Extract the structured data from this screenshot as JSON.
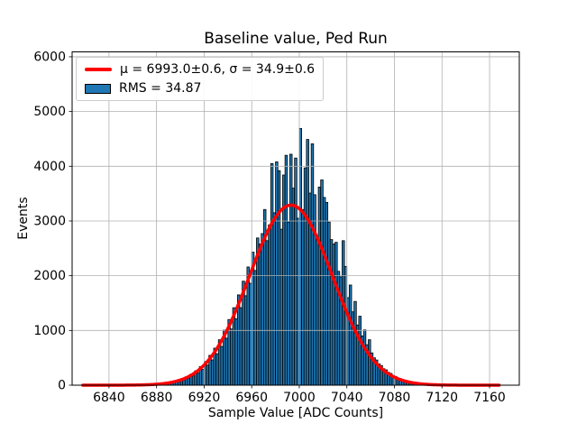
{
  "chart_data": {
    "type": "histogram",
    "title": "Baseline value, Ped Run",
    "xlabel": "Sample Value [ADC Counts]",
    "ylabel": "Events",
    "xlim": [
      6809,
      7185
    ],
    "ylim": [
      0,
      6090
    ],
    "xticks": [
      6840,
      6880,
      6920,
      6960,
      7000,
      7040,
      7080,
      7120,
      7160
    ],
    "yticks": [
      0,
      1000,
      2000,
      3000,
      4000,
      5000,
      6000
    ],
    "grid": true,
    "legend": {
      "position": "upper left",
      "items": [
        {
          "type": "line",
          "color": "#ff0000",
          "label": "μ = 6993.0±0.6, σ = 34.9±0.6"
        },
        {
          "type": "patch",
          "color": "#1f77b4",
          "label": "RMS = 34.87"
        }
      ]
    },
    "histogram": {
      "bin_start": 6826,
      "bin_width": 2,
      "counts": [
        0,
        0,
        1,
        0,
        0,
        1,
        0,
        1,
        0,
        2,
        1,
        2,
        1,
        3,
        2,
        4,
        3,
        5,
        4,
        7,
        5,
        9,
        8,
        13,
        10,
        16,
        13,
        23,
        19,
        32,
        26,
        45,
        38,
        62,
        52,
        85,
        70,
        115,
        96,
        152,
        128,
        200,
        168,
        262,
        222,
        340,
        288,
        432,
        368,
        545,
        462,
        676,
        575,
        830,
        708,
        1005,
        858,
        1200,
        1026,
        1415,
        1212,
        1650,
        1416,
        1900,
        1634,
        2160,
        1862,
        2430,
        2095,
        2690,
        2580,
        2770,
        3210,
        2640,
        2930,
        4050,
        3150,
        4080,
        3920,
        2850,
        3840,
        4200,
        2980,
        4220,
        3600,
        4150,
        3050,
        4690,
        3210,
        3970,
        4490,
        3510,
        4410,
        3480,
        2720,
        3620,
        3750,
        3430,
        3340,
        2980,
        2660,
        2580,
        2610,
        2080,
        1980,
        2640,
        2170,
        1600,
        1830,
        1340,
        1530,
        1100,
        1260,
        900,
        1010,
        740,
        830,
        590,
        500,
        460,
        390,
        360,
        300,
        280,
        235,
        215,
        175,
        160,
        130,
        120,
        95,
        88,
        68,
        62,
        48,
        44,
        33,
        30,
        22,
        20,
        14,
        13,
        9,
        8,
        5,
        5,
        3,
        3,
        2,
        2,
        1,
        2,
        1,
        0,
        1,
        0,
        1,
        0,
        0,
        1,
        0,
        0,
        0,
        0,
        0,
        0,
        0,
        0,
        0,
        1
      ]
    },
    "fit": {
      "shape": "gaussian",
      "mu": 6993.0,
      "mu_err": 0.6,
      "sigma": 34.9,
      "sigma_err": 0.6,
      "amplitude": 3290,
      "x_range": [
        6818,
        7168
      ],
      "linewidth": 3.5
    },
    "colors": {
      "bar_fill": "#1f77b4",
      "bar_edge": "#000000",
      "fit_line": "#ff0000",
      "grid": "#b0b0b0",
      "frame": "#000000",
      "background": "#ffffff"
    }
  }
}
